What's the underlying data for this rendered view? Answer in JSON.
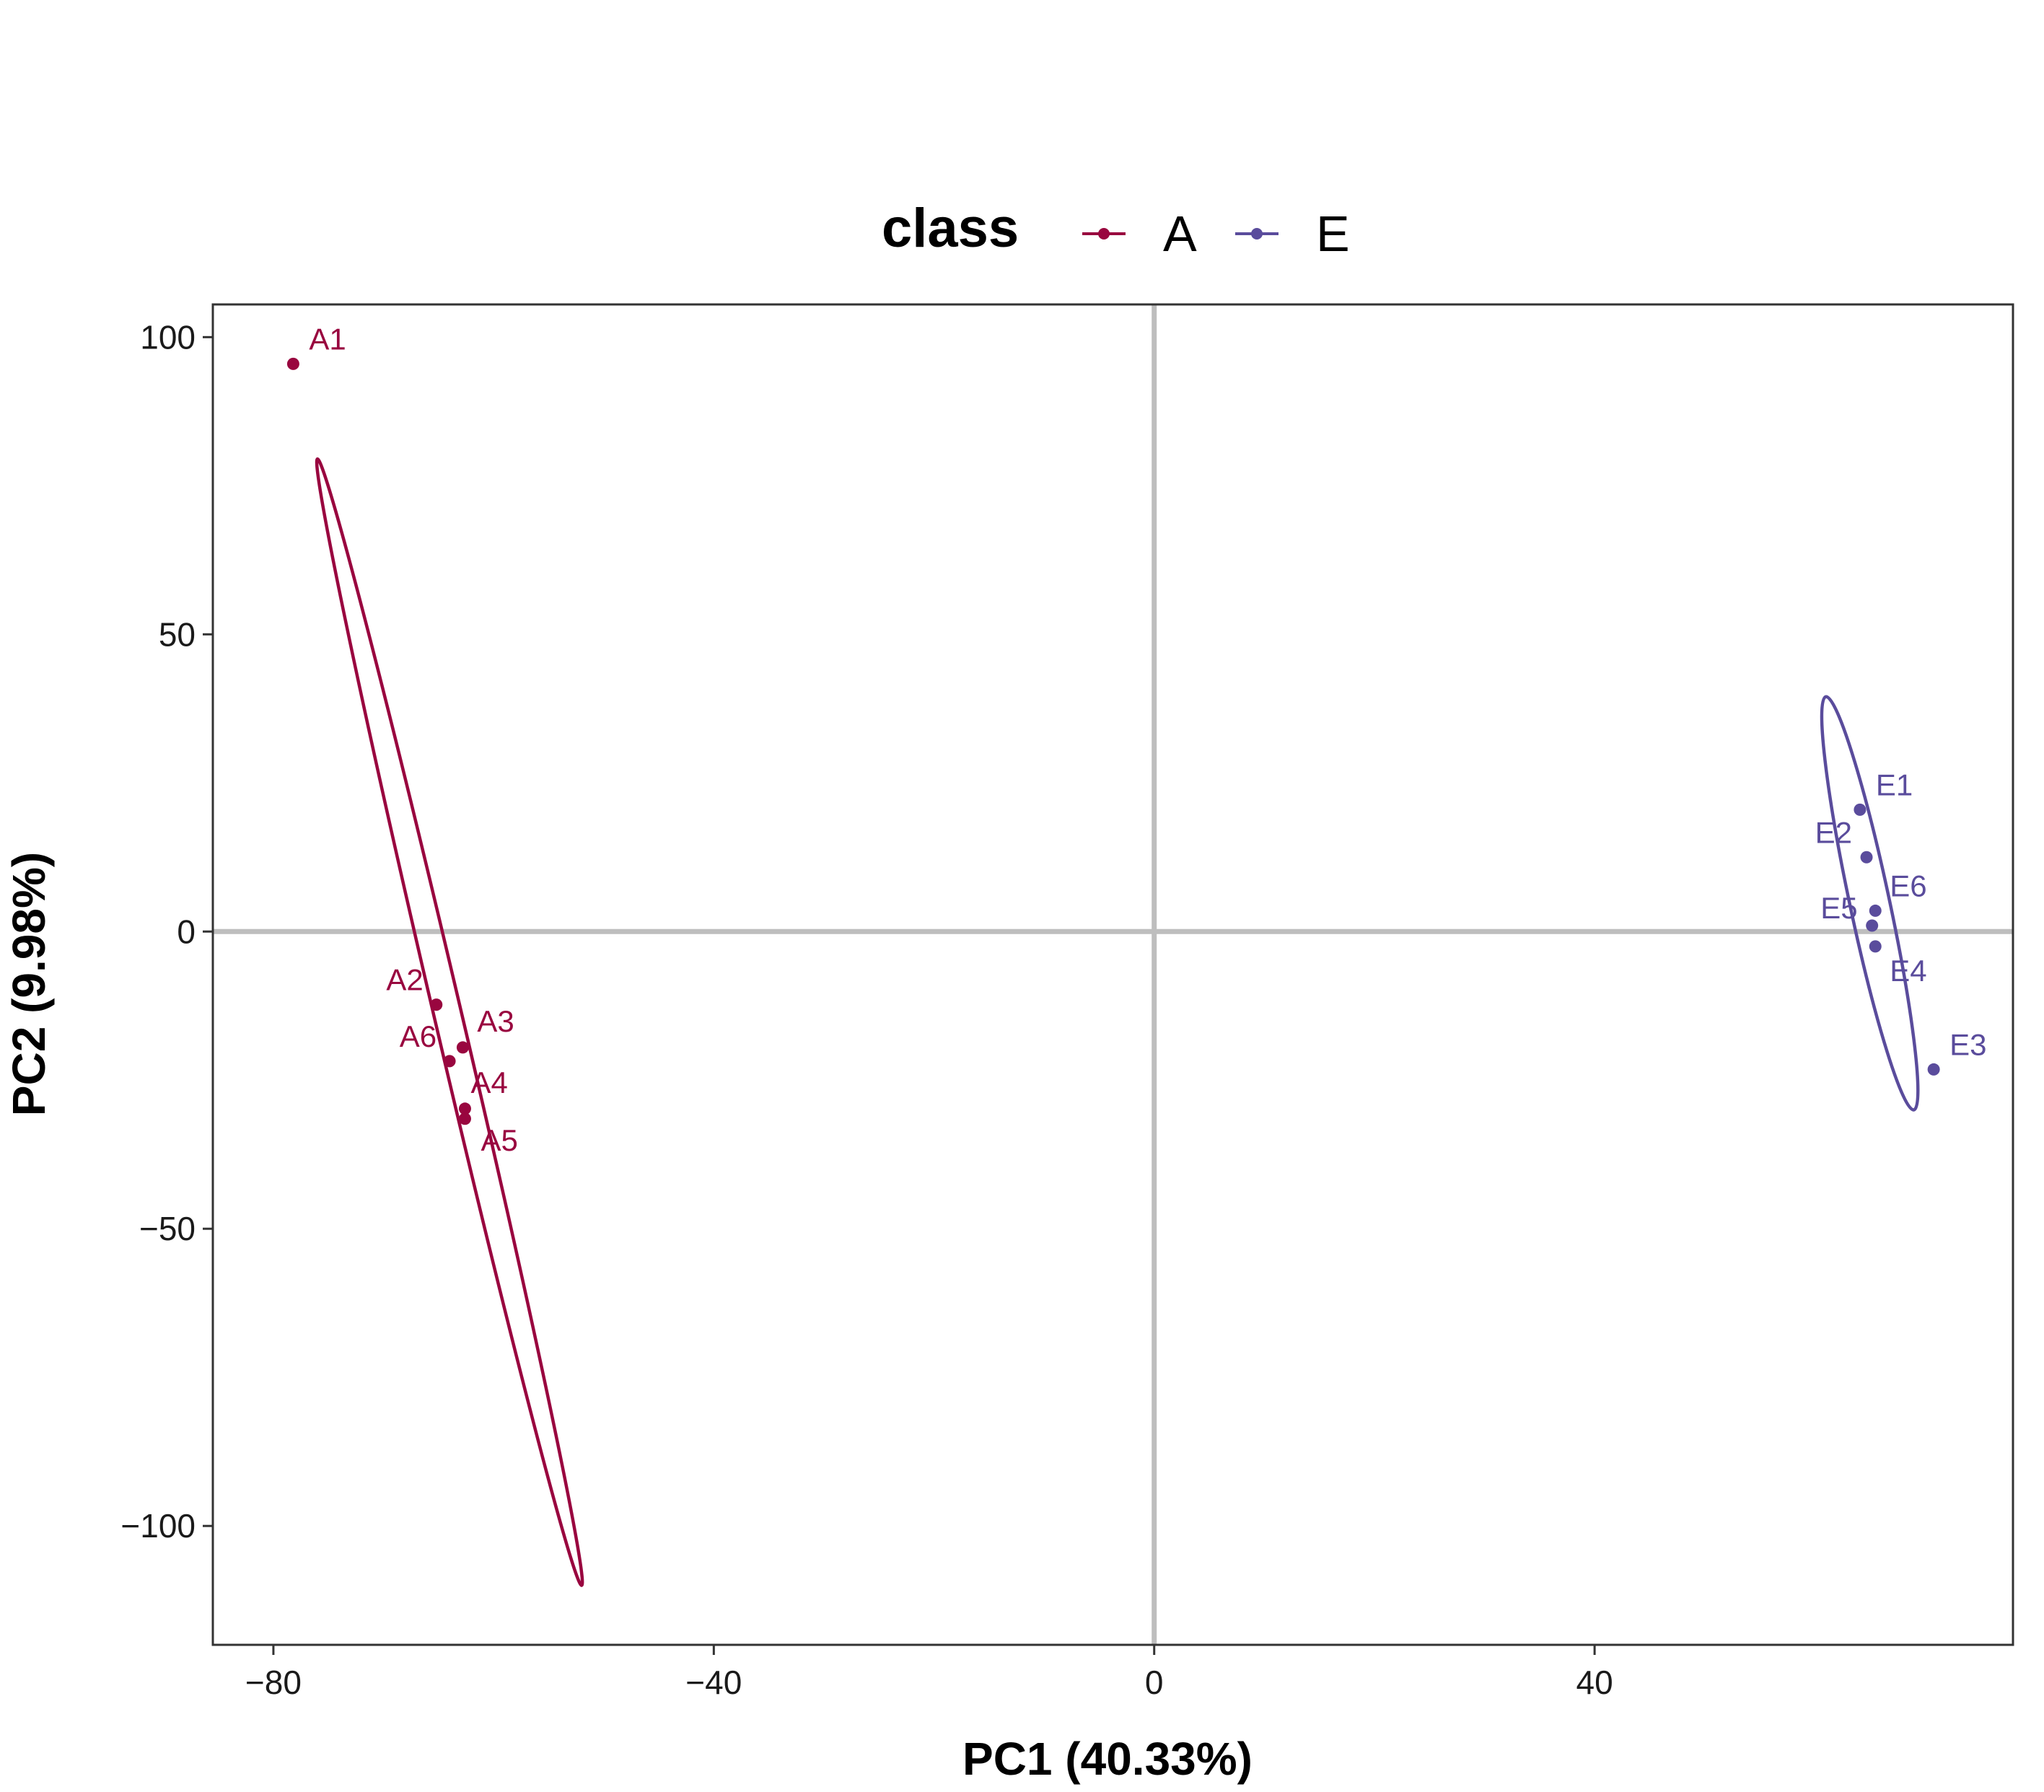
{
  "chart_data": {
    "type": "scatter",
    "xlabel": "PC1 (40.33%)",
    "ylabel": "PC2 (9.98%)",
    "xlim": [
      -85.5,
      78
    ],
    "ylim": [
      -120,
      105.5
    ],
    "xticks": [
      -80,
      -40,
      0,
      40
    ],
    "yticks": [
      100,
      50,
      0,
      -50,
      -100
    ],
    "xtick_labels": [
      "−80",
      "−40",
      "0",
      "40"
    ],
    "ytick_labels": [
      "100",
      "50",
      "0",
      "−50",
      "−100"
    ],
    "grid": false,
    "reference_lines": [
      0,
      0
    ],
    "legend": {
      "title": "class",
      "position": "top",
      "entries": [
        "A",
        "E"
      ]
    },
    "colors": {
      "A": "#99063f",
      "E": "#5a4c9c"
    },
    "series": [
      {
        "name": "A",
        "color": "#99063f",
        "points": [
          {
            "label": "A1",
            "x": -78.2,
            "y": 95.5
          },
          {
            "label": "A2",
            "x": -65.2,
            "y": -12.3
          },
          {
            "label": "A3",
            "x": -62.8,
            "y": -19.5
          },
          {
            "label": "A4",
            "x": -62.6,
            "y": -31.5
          },
          {
            "label": "A5",
            "x": -62.6,
            "y": -31.5
          },
          {
            "label": "A6",
            "x": -64.0,
            "y": -21.8
          }
        ],
        "ellipse": {
          "center": [
            -64.0,
            -15.2
          ],
          "top": [
            -76.0,
            79.5
          ],
          "bottom": [
            -52.0,
            -110.0
          ],
          "minor_half_width": 1.25
        }
      },
      {
        "name": "E",
        "color": "#5a4c9c",
        "points": [
          {
            "label": "E1",
            "x": 64.1,
            "y": 20.5
          },
          {
            "label": "E2",
            "x": 64.7,
            "y": 12.5
          },
          {
            "label": "E3",
            "x": 70.8,
            "y": -23.2
          },
          {
            "label": "E4",
            "x": 65.5,
            "y": -2.5
          },
          {
            "label": "E5",
            "x": 65.2,
            "y": 1.0
          },
          {
            "label": "E6",
            "x": 65.5,
            "y": 3.5
          }
        ],
        "ellipse": {
          "center": [
            65.0,
            4.8
          ],
          "top": [
            61.0,
            39.5
          ],
          "bottom": [
            69.0,
            -30.0
          ],
          "minor_half_width": 1.8
        }
      }
    ]
  }
}
